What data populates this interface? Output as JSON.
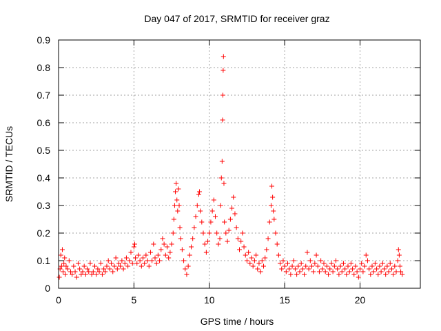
{
  "chart_data": {
    "type": "scatter",
    "title": "Day 047 of 2017, SRMTID for receiver graz",
    "xlabel": "GPS time / hours",
    "ylabel": "SRMTID / TECUs",
    "xlim": [
      0,
      24
    ],
    "ylim": [
      0,
      0.9
    ],
    "xticks": [
      0,
      5,
      10,
      15,
      20
    ],
    "yticks": [
      0,
      0.1,
      0.2,
      0.3,
      0.4,
      0.5,
      0.6,
      0.7,
      0.8,
      0.9
    ],
    "xtick_labels": [
      "0",
      "5",
      "10",
      "15",
      "20"
    ],
    "ytick_labels": [
      "0",
      "0.1",
      "0.2",
      "0.3",
      "0.4",
      "0.5",
      "0.6",
      "0.7",
      "0.8",
      "0.9"
    ],
    "grid": true,
    "marker": "+",
    "color": "#ff0000",
    "series": [
      {
        "name": "SRMTID",
        "points": [
          [
            0.05,
            0.04
          ],
          [
            0.1,
            0.07
          ],
          [
            0.15,
            0.12
          ],
          [
            0.2,
            0.08
          ],
          [
            0.25,
            0.14
          ],
          [
            0.3,
            0.06
          ],
          [
            0.35,
            0.09
          ],
          [
            0.4,
            0.11
          ],
          [
            0.45,
            0.05
          ],
          [
            0.5,
            0.08
          ],
          [
            0.6,
            0.07
          ],
          [
            0.7,
            0.1
          ],
          [
            0.8,
            0.06
          ],
          [
            0.9,
            0.05
          ],
          [
            1.0,
            0.08
          ],
          [
            1.1,
            0.06
          ],
          [
            1.2,
            0.04
          ],
          [
            1.3,
            0.09
          ],
          [
            1.4,
            0.07
          ],
          [
            1.5,
            0.05
          ],
          [
            1.6,
            0.06
          ],
          [
            1.7,
            0.08
          ],
          [
            1.8,
            0.05
          ],
          [
            1.9,
            0.07
          ],
          [
            2.0,
            0.06
          ],
          [
            2.1,
            0.09
          ],
          [
            2.2,
            0.05
          ],
          [
            2.3,
            0.06
          ],
          [
            2.4,
            0.08
          ],
          [
            2.5,
            0.05
          ],
          [
            2.6,
            0.07
          ],
          [
            2.7,
            0.06
          ],
          [
            2.8,
            0.09
          ],
          [
            2.9,
            0.05
          ],
          [
            3.0,
            0.07
          ],
          [
            3.1,
            0.06
          ],
          [
            3.2,
            0.08
          ],
          [
            3.3,
            0.1
          ],
          [
            3.4,
            0.07
          ],
          [
            3.5,
            0.09
          ],
          [
            3.6,
            0.06
          ],
          [
            3.7,
            0.08
          ],
          [
            3.8,
            0.11
          ],
          [
            3.9,
            0.07
          ],
          [
            4.0,
            0.09
          ],
          [
            4.1,
            0.08
          ],
          [
            4.2,
            0.1
          ],
          [
            4.3,
            0.07
          ],
          [
            4.4,
            0.09
          ],
          [
            4.5,
            0.11
          ],
          [
            4.6,
            0.08
          ],
          [
            4.7,
            0.1
          ],
          [
            4.8,
            0.13
          ],
          [
            4.9,
            0.09
          ],
          [
            5.0,
            0.15
          ],
          [
            5.05,
            0.16
          ],
          [
            5.1,
            0.11
          ],
          [
            5.2,
            0.09
          ],
          [
            5.3,
            0.12
          ],
          [
            5.4,
            0.1
          ],
          [
            5.5,
            0.08
          ],
          [
            5.6,
            0.11
          ],
          [
            5.7,
            0.09
          ],
          [
            5.8,
            0.12
          ],
          [
            5.9,
            0.1
          ],
          [
            6.0,
            0.08
          ],
          [
            6.1,
            0.13
          ],
          [
            6.2,
            0.1
          ],
          [
            6.3,
            0.16
          ],
          [
            6.4,
            0.11
          ],
          [
            6.5,
            0.09
          ],
          [
            6.6,
            0.12
          ],
          [
            6.7,
            0.1
          ],
          [
            6.8,
            0.14
          ],
          [
            6.9,
            0.18
          ],
          [
            7.0,
            0.16
          ],
          [
            7.1,
            0.12
          ],
          [
            7.2,
            0.15
          ],
          [
            7.3,
            0.11
          ],
          [
            7.4,
            0.13
          ],
          [
            7.5,
            0.16
          ],
          [
            7.6,
            0.2
          ],
          [
            7.65,
            0.25
          ],
          [
            7.7,
            0.3
          ],
          [
            7.75,
            0.35
          ],
          [
            7.8,
            0.38
          ],
          [
            7.85,
            0.32
          ],
          [
            7.9,
            0.28
          ],
          [
            7.95,
            0.36
          ],
          [
            8.0,
            0.3
          ],
          [
            8.05,
            0.22
          ],
          [
            8.1,
            0.18
          ],
          [
            8.2,
            0.14
          ],
          [
            8.3,
            0.1
          ],
          [
            8.4,
            0.07
          ],
          [
            8.5,
            0.05
          ],
          [
            8.6,
            0.08
          ],
          [
            8.7,
            0.12
          ],
          [
            8.8,
            0.15
          ],
          [
            8.9,
            0.18
          ],
          [
            9.0,
            0.22
          ],
          [
            9.1,
            0.26
          ],
          [
            9.2,
            0.3
          ],
          [
            9.3,
            0.34
          ],
          [
            9.35,
            0.35
          ],
          [
            9.4,
            0.28
          ],
          [
            9.5,
            0.24
          ],
          [
            9.6,
            0.2
          ],
          [
            9.7,
            0.16
          ],
          [
            9.8,
            0.13
          ],
          [
            9.9,
            0.17
          ],
          [
            10.0,
            0.2
          ],
          [
            10.1,
            0.24
          ],
          [
            10.2,
            0.28
          ],
          [
            10.3,
            0.32
          ],
          [
            10.4,
            0.26
          ],
          [
            10.5,
            0.2
          ],
          [
            10.6,
            0.16
          ],
          [
            10.7,
            0.18
          ],
          [
            10.75,
            0.3
          ],
          [
            10.8,
            0.4
          ],
          [
            10.85,
            0.46
          ],
          [
            10.88,
            0.61
          ],
          [
            10.9,
            0.7
          ],
          [
            10.92,
            0.79
          ],
          [
            10.94,
            0.84
          ],
          [
            10.97,
            0.38
          ],
          [
            11.0,
            0.24
          ],
          [
            11.1,
            0.2
          ],
          [
            11.2,
            0.17
          ],
          [
            11.3,
            0.21
          ],
          [
            11.4,
            0.25
          ],
          [
            11.5,
            0.29
          ],
          [
            11.6,
            0.33
          ],
          [
            11.7,
            0.27
          ],
          [
            11.8,
            0.22
          ],
          [
            11.9,
            0.18
          ],
          [
            12.0,
            0.14
          ],
          [
            12.1,
            0.17
          ],
          [
            12.2,
            0.2
          ],
          [
            12.3,
            0.15
          ],
          [
            12.4,
            0.12
          ],
          [
            12.5,
            0.1
          ],
          [
            12.6,
            0.13
          ],
          [
            12.7,
            0.09
          ],
          [
            12.8,
            0.11
          ],
          [
            12.9,
            0.08
          ],
          [
            13.0,
            0.1
          ],
          [
            13.1,
            0.12
          ],
          [
            13.2,
            0.07
          ],
          [
            13.3,
            0.09
          ],
          [
            13.4,
            0.06
          ],
          [
            13.5,
            0.1
          ],
          [
            13.6,
            0.08
          ],
          [
            13.7,
            0.11
          ],
          [
            13.8,
            0.14
          ],
          [
            13.9,
            0.18
          ],
          [
            14.0,
            0.24
          ],
          [
            14.1,
            0.3
          ],
          [
            14.15,
            0.37
          ],
          [
            14.2,
            0.33
          ],
          [
            14.25,
            0.28
          ],
          [
            14.3,
            0.25
          ],
          [
            14.4,
            0.2
          ],
          [
            14.5,
            0.16
          ],
          [
            14.6,
            0.12
          ],
          [
            14.7,
            0.09
          ],
          [
            14.8,
            0.07
          ],
          [
            14.9,
            0.1
          ],
          [
            15.0,
            0.08
          ],
          [
            15.1,
            0.06
          ],
          [
            15.2,
            0.09
          ],
          [
            15.3,
            0.07
          ],
          [
            15.4,
            0.05
          ],
          [
            15.5,
            0.08
          ],
          [
            15.6,
            0.1
          ],
          [
            15.7,
            0.07
          ],
          [
            15.8,
            0.05
          ],
          [
            15.9,
            0.08
          ],
          [
            16.0,
            0.06
          ],
          [
            16.1,
            0.09
          ],
          [
            16.2,
            0.07
          ],
          [
            16.3,
            0.05
          ],
          [
            16.4,
            0.08
          ],
          [
            16.5,
            0.13
          ],
          [
            16.6,
            0.07
          ],
          [
            16.7,
            0.1
          ],
          [
            16.8,
            0.08
          ],
          [
            16.9,
            0.06
          ],
          [
            17.0,
            0.09
          ],
          [
            17.1,
            0.12
          ],
          [
            17.2,
            0.08
          ],
          [
            17.3,
            0.06
          ],
          [
            17.4,
            0.1
          ],
          [
            17.5,
            0.07
          ],
          [
            17.6,
            0.09
          ],
          [
            17.7,
            0.06
          ],
          [
            17.8,
            0.08
          ],
          [
            17.9,
            0.05
          ],
          [
            18.0,
            0.07
          ],
          [
            18.1,
            0.09
          ],
          [
            18.2,
            0.06
          ],
          [
            18.3,
            0.08
          ],
          [
            18.4,
            0.1
          ],
          [
            18.5,
            0.07
          ],
          [
            18.6,
            0.05
          ],
          [
            18.7,
            0.08
          ],
          [
            18.8,
            0.06
          ],
          [
            18.9,
            0.09
          ],
          [
            19.0,
            0.07
          ],
          [
            19.1,
            0.05
          ],
          [
            19.2,
            0.08
          ],
          [
            19.3,
            0.06
          ],
          [
            19.4,
            0.09
          ],
          [
            19.5,
            0.07
          ],
          [
            19.6,
            0.05
          ],
          [
            19.7,
            0.08
          ],
          [
            19.8,
            0.06
          ],
          [
            19.9,
            0.04
          ],
          [
            20.0,
            0.07
          ],
          [
            20.1,
            0.09
          ],
          [
            20.2,
            0.06
          ],
          [
            20.3,
            0.08
          ],
          [
            20.4,
            0.12
          ],
          [
            20.5,
            0.1
          ],
          [
            20.6,
            0.07
          ],
          [
            20.7,
            0.05
          ],
          [
            20.8,
            0.08
          ],
          [
            20.9,
            0.06
          ],
          [
            21.0,
            0.09
          ],
          [
            21.1,
            0.07
          ],
          [
            21.2,
            0.05
          ],
          [
            21.3,
            0.08
          ],
          [
            21.4,
            0.06
          ],
          [
            21.5,
            0.09
          ],
          [
            21.6,
            0.07
          ],
          [
            21.7,
            0.05
          ],
          [
            21.8,
            0.08
          ],
          [
            21.9,
            0.06
          ],
          [
            22.0,
            0.09
          ],
          [
            22.1,
            0.07
          ],
          [
            22.2,
            0.05
          ],
          [
            22.3,
            0.08
          ],
          [
            22.4,
            0.06
          ],
          [
            22.5,
            0.1
          ],
          [
            22.55,
            0.14
          ],
          [
            22.6,
            0.12
          ],
          [
            22.65,
            0.08
          ],
          [
            22.7,
            0.06
          ],
          [
            22.8,
            0.05
          ]
        ]
      }
    ]
  }
}
